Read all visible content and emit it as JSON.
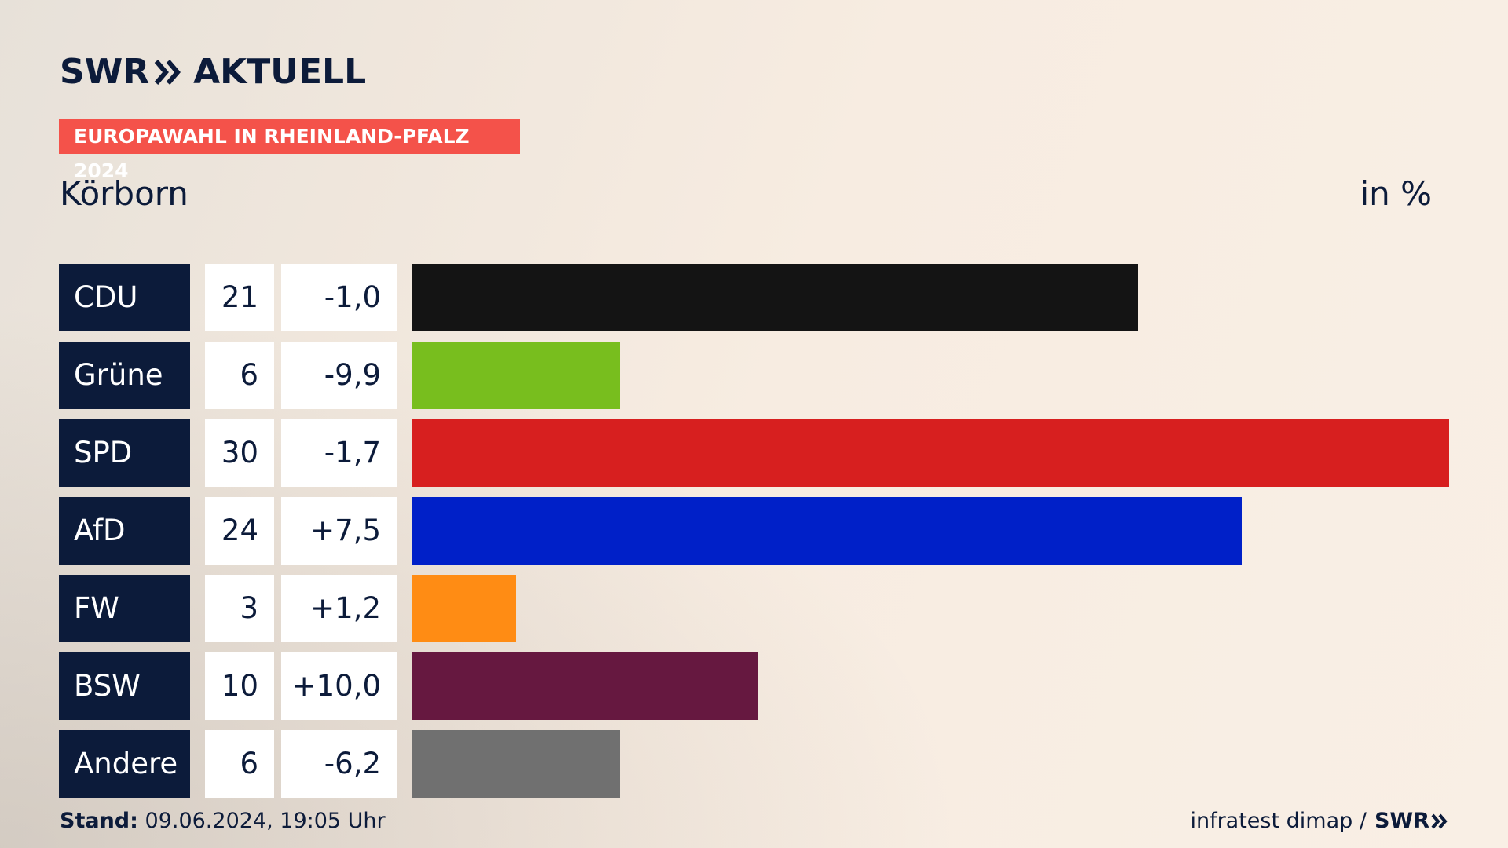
{
  "header": {
    "logo_left": "SWR",
    "logo_right": "AKTUELL",
    "banner": "EUROPAWAHL IN RHEINLAND-PFALZ 2024",
    "place": "Körborn",
    "unit": "in %"
  },
  "chart_data": {
    "type": "bar",
    "orientation": "horizontal",
    "title": "EUROPAWAHL IN RHEINLAND-PFALZ 2024",
    "subtitle": "Körborn",
    "unit": "in %",
    "categories": [
      "CDU",
      "Grüne",
      "SPD",
      "AfD",
      "FW",
      "BSW",
      "Andere"
    ],
    "values": [
      21,
      6,
      30,
      24,
      3,
      10,
      6
    ],
    "value_labels": [
      "21",
      "6",
      "30",
      "24",
      "3",
      "10",
      "6"
    ],
    "changes": [
      "-1,0",
      "-9,9",
      "-1,7",
      "+7,5",
      "+1,2",
      "+10,0",
      "-6,2"
    ],
    "colors": [
      "#141414",
      "#78be1e",
      "#d71f1f",
      "#0020c8",
      "#ff8c14",
      "#661840",
      "#707070"
    ],
    "xlim": [
      0,
      30
    ],
    "grid": false,
    "legend": "none"
  },
  "footer": {
    "stand_label": "Stand:",
    "stand_value": "09.06.2024, 19:05 Uhr",
    "source": "infratest dimap /",
    "source_logo": "SWR"
  }
}
